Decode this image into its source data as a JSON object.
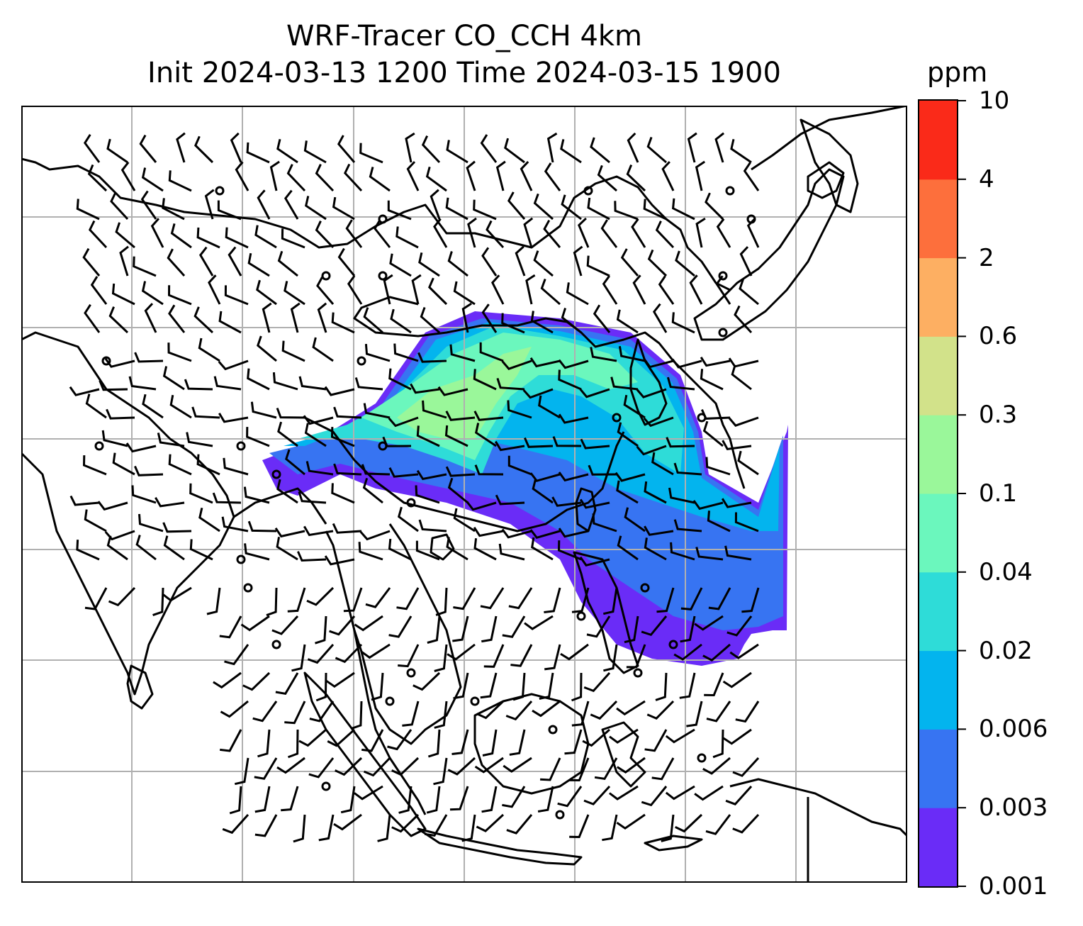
{
  "title": {
    "line1": "WRF-Tracer CO_CCH 4km",
    "line2": "Init 2024-03-13 1200 Time 2024-03-15 1900"
  },
  "colorbar": {
    "unit": "ppm",
    "levels": [
      "0.001",
      "0.003",
      "0.006",
      "0.02",
      "0.04",
      "0.1",
      "0.3",
      "0.6",
      "2",
      "4",
      "10"
    ],
    "colors": [
      "#6a2cf7",
      "#3774f2",
      "#03b4ee",
      "#2edcd8",
      "#6bf7bd",
      "#9af79a",
      "#d2e28a",
      "#fdaf62",
      "#fd6f3c",
      "#fa2a19"
    ]
  },
  "map": {
    "gridlines": true,
    "coastline_color": "#000000",
    "grid_color": "#b0b0b0",
    "wind_barbs": true
  }
}
